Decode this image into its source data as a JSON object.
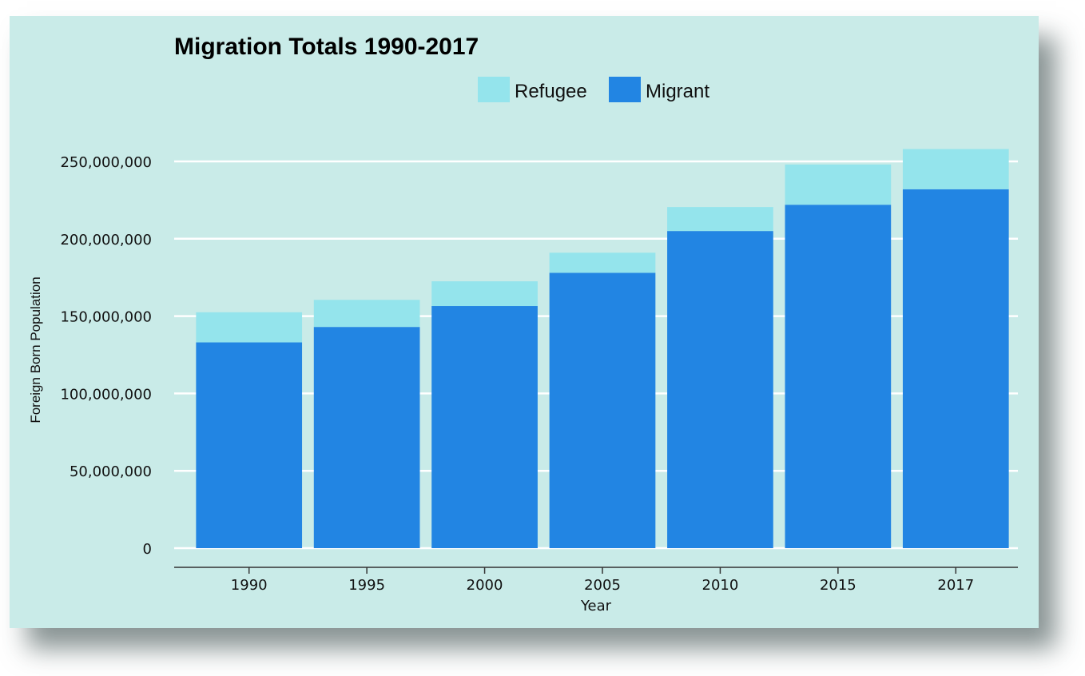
{
  "chart_data": {
    "type": "bar",
    "stacked": true,
    "title": "Migration Totals 1990-2017",
    "xlabel": "Year",
    "ylabel": "Foreign Born Population",
    "categories": [
      "1990",
      "1995",
      "2000",
      "2005",
      "2010",
      "2015",
      "2017"
    ],
    "series": [
      {
        "name": "Migrant",
        "color": "#2285e3",
        "values": [
          133000000,
          143000000,
          156500000,
          178000000,
          205000000,
          222000000,
          232000000
        ]
      },
      {
        "name": "Refugee",
        "color": "#94e4ec",
        "values": [
          19500000,
          17500000,
          16000000,
          13000000,
          15500000,
          26000000,
          26000000
        ]
      }
    ],
    "legend": {
      "position": "top",
      "items": [
        "Refugee",
        "Migrant"
      ]
    },
    "ylim": [
      0,
      265000000
    ],
    "yticks": [
      0,
      50000000,
      100000000,
      150000000,
      200000000,
      250000000
    ],
    "ytick_labels": [
      "0",
      "50,000,000",
      "100,000,000",
      "150,000,000",
      "200,000,000",
      "250,000,000"
    ],
    "grid": true,
    "grid_color": "#ffffff",
    "background_color": "#c9ebe8"
  }
}
